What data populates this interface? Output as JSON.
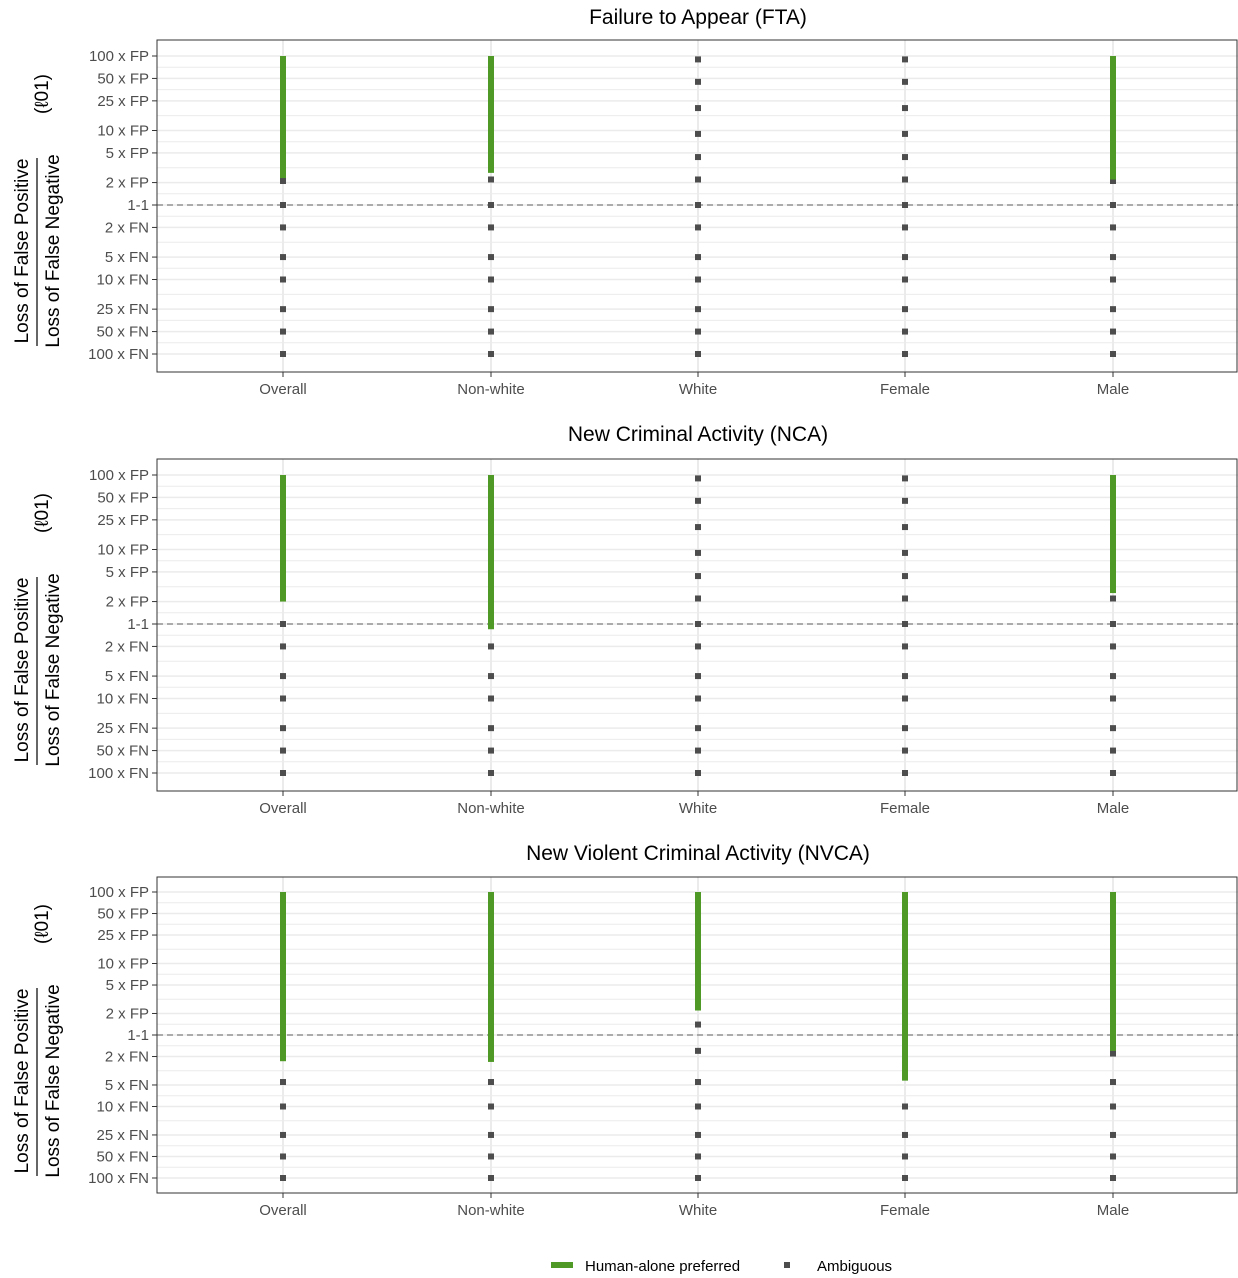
{
  "chart_data": [
    {
      "type": "range-dot",
      "title": "Failure to Appear (FTA)",
      "categories": [
        "Overall",
        "Non-white",
        "White",
        "Female",
        "Male"
      ],
      "ylabel_numerator": "Loss of False Positive",
      "ylabel_denominator": "Loss of False Negative",
      "ylabel_symbol": "(ℓ01)",
      "y_scale": "log",
      "y_ticks": [
        {
          "label": "100 x FP",
          "value": 100
        },
        {
          "label": "50 x FP",
          "value": 50
        },
        {
          "label": "25 x FP",
          "value": 25
        },
        {
          "label": "10 x FP",
          "value": 10
        },
        {
          "label": "5 x FP",
          "value": 5
        },
        {
          "label": "2 x FP",
          "value": 2
        },
        {
          "label": "1-1",
          "value": 1
        },
        {
          "label": "2 x FN",
          "value": 0.5
        },
        {
          "label": "5 x FN",
          "value": 0.2
        },
        {
          "label": "10 x FN",
          "value": 0.1
        },
        {
          "label": "25 x FN",
          "value": 0.04
        },
        {
          "label": "50 x FN",
          "value": 0.02
        },
        {
          "label": "100 x FN",
          "value": 0.01
        }
      ],
      "reference_line": 1,
      "series": [
        {
          "name": "Human-alone preferred",
          "ranges": [
            [
              2.3,
              100
            ],
            [
              2.7,
              100
            ],
            null,
            null,
            [
              2.2,
              100
            ]
          ]
        },
        {
          "name": "Ambiguous",
          "points": [
            [
              2.1,
              1,
              0.5,
              0.2,
              0.1,
              0.04,
              0.02,
              0.01
            ],
            [
              2.2,
              1,
              0.5,
              0.2,
              0.1,
              0.04,
              0.02,
              0.01
            ],
            [
              90,
              45,
              20,
              9,
              4.4,
              2.2,
              1,
              0.5,
              0.2,
              0.1,
              0.04,
              0.02,
              0.01
            ],
            [
              90,
              45,
              20,
              9,
              4.4,
              2.2,
              1,
              0.5,
              0.2,
              0.1,
              0.04,
              0.02,
              0.01
            ],
            [
              2.1,
              1,
              0.5,
              0.2,
              0.1,
              0.04,
              0.02,
              0.01
            ]
          ]
        }
      ]
    },
    {
      "type": "range-dot",
      "title": "New Criminal Activity (NCA)",
      "categories": [
        "Overall",
        "Non-white",
        "White",
        "Female",
        "Male"
      ],
      "ylabel_numerator": "Loss of False Positive",
      "ylabel_denominator": "Loss of False Negative",
      "ylabel_symbol": "(ℓ01)",
      "y_scale": "log",
      "y_ticks": [
        {
          "label": "100 x FP",
          "value": 100
        },
        {
          "label": "50 x FP",
          "value": 50
        },
        {
          "label": "25 x FP",
          "value": 25
        },
        {
          "label": "10 x FP",
          "value": 10
        },
        {
          "label": "5 x FP",
          "value": 5
        },
        {
          "label": "2 x FP",
          "value": 2
        },
        {
          "label": "1-1",
          "value": 1
        },
        {
          "label": "2 x FN",
          "value": 0.5
        },
        {
          "label": "5 x FN",
          "value": 0.2
        },
        {
          "label": "10 x FN",
          "value": 0.1
        },
        {
          "label": "25 x FN",
          "value": 0.04
        },
        {
          "label": "50 x FN",
          "value": 0.02
        },
        {
          "label": "100 x FN",
          "value": 0.01
        }
      ],
      "reference_line": 1,
      "series": [
        {
          "name": "Human-alone preferred",
          "ranges": [
            [
              2.0,
              100
            ],
            [
              0.85,
              100
            ],
            null,
            null,
            [
              2.6,
              100
            ]
          ]
        },
        {
          "name": "Ambiguous",
          "points": [
            [
              1,
              0.5,
              0.2,
              0.1,
              0.04,
              0.02,
              0.01
            ],
            [
              0.5,
              0.2,
              0.1,
              0.04,
              0.02,
              0.01
            ],
            [
              90,
              45,
              20,
              9,
              4.4,
              2.2,
              1,
              0.5,
              0.2,
              0.1,
              0.04,
              0.02,
              0.01
            ],
            [
              90,
              45,
              20,
              9,
              4.4,
              2.2,
              1,
              0.5,
              0.2,
              0.1,
              0.04,
              0.02,
              0.01
            ],
            [
              2.2,
              1,
              0.5,
              0.2,
              0.1,
              0.04,
              0.02,
              0.01
            ]
          ]
        }
      ]
    },
    {
      "type": "range-dot",
      "title": "New Violent Criminal Activity (NVCA)",
      "categories": [
        "Overall",
        "Non-white",
        "White",
        "Female",
        "Male"
      ],
      "ylabel_numerator": "Loss of False Positive",
      "ylabel_denominator": "Loss of False Negative",
      "ylabel_symbol": "(ℓ01)",
      "y_scale": "log",
      "y_ticks": [
        {
          "label": "100 x FP",
          "value": 100
        },
        {
          "label": "50 x FP",
          "value": 50
        },
        {
          "label": "25 x FP",
          "value": 25
        },
        {
          "label": "10 x FP",
          "value": 10
        },
        {
          "label": "5 x FP",
          "value": 5
        },
        {
          "label": "2 x FP",
          "value": 2
        },
        {
          "label": "1-1",
          "value": 1
        },
        {
          "label": "2 x FN",
          "value": 0.5
        },
        {
          "label": "5 x FN",
          "value": 0.2
        },
        {
          "label": "10 x FN",
          "value": 0.1
        },
        {
          "label": "25 x FN",
          "value": 0.04
        },
        {
          "label": "50 x FN",
          "value": 0.02
        },
        {
          "label": "100 x FN",
          "value": 0.01
        }
      ],
      "reference_line": 1,
      "series": [
        {
          "name": "Human-alone preferred",
          "ranges": [
            [
              0.43,
              100
            ],
            [
              0.42,
              100
            ],
            [
              2.2,
              100
            ],
            [
              0.23,
              100
            ],
            [
              0.6,
              100
            ]
          ]
        },
        {
          "name": "Ambiguous",
          "points": [
            [
              0.22,
              0.1,
              0.04,
              0.02,
              0.01
            ],
            [
              0.22,
              0.1,
              0.04,
              0.02,
              0.01
            ],
            [
              1.4,
              0.6,
              0.22,
              0.1,
              0.04,
              0.02,
              0.01
            ],
            [
              0.1,
              0.04,
              0.02,
              0.01
            ],
            [
              0.55,
              0.22,
              0.1,
              0.04,
              0.02,
              0.01
            ]
          ]
        }
      ]
    }
  ],
  "legend": {
    "position": "bottom",
    "items": [
      {
        "label": "Human-alone preferred",
        "color": "#4f9a26",
        "shape": "bar"
      },
      {
        "label": "Ambiguous",
        "color": "#4d4d4d",
        "shape": "square"
      }
    ]
  },
  "colors": {
    "human": "#4f9a26",
    "ambiguous": "#4d4d4d",
    "grid": "#ebebeb",
    "refline": "#7f7f7f"
  }
}
